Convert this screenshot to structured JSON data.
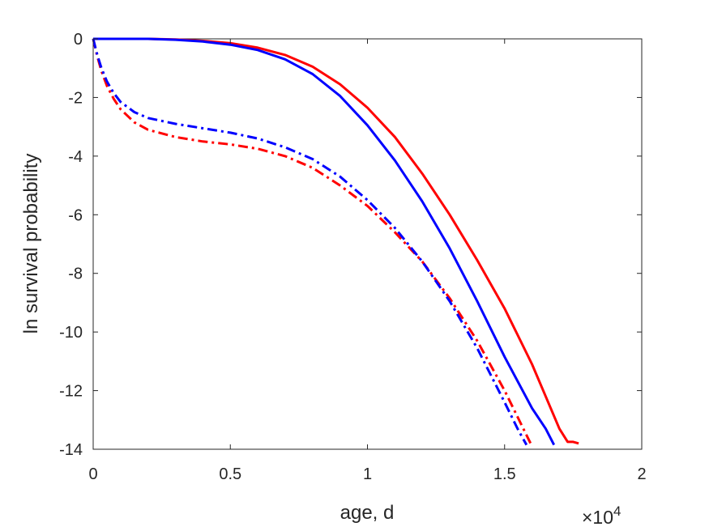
{
  "chart_data": {
    "type": "line",
    "xlabel": "age, d",
    "ylabel": "ln survival probability",
    "x_exponent_label": {
      "base": "×10",
      "exponent": "4"
    },
    "xlim": [
      0,
      20000
    ],
    "ylim": [
      -14,
      0
    ],
    "x_ticks": [
      0,
      5000,
      10000,
      15000,
      20000
    ],
    "x_tick_labels": [
      "0",
      "0.5",
      "1",
      "1.5",
      "2"
    ],
    "y_ticks": [
      0,
      -2,
      -4,
      -6,
      -8,
      -10,
      -12,
      -14
    ],
    "y_tick_labels": [
      "0",
      "-2",
      "-4",
      "-6",
      "-8",
      "-10",
      "-12",
      "-14"
    ],
    "grid": false,
    "series": [
      {
        "color": "#ff0000",
        "style": "solid",
        "x": [
          0,
          1000,
          2000,
          3000,
          4000,
          5000,
          6000,
          7000,
          8000,
          9000,
          10000,
          11000,
          12000,
          13000,
          14000,
          15000,
          16000,
          16500,
          17000,
          17300,
          17500,
          17700
        ],
        "y": [
          0,
          0,
          0,
          -0.02,
          -0.07,
          -0.15,
          -0.3,
          -0.55,
          -0.95,
          -1.55,
          -2.35,
          -3.35,
          -4.6,
          -6.0,
          -7.55,
          -9.2,
          -11.1,
          -12.2,
          -13.3,
          -13.75,
          -13.75,
          -13.8
        ]
      },
      {
        "color": "#0000ff",
        "style": "solid",
        "x": [
          0,
          1000,
          2000,
          3000,
          4000,
          5000,
          6000,
          7000,
          8000,
          9000,
          10000,
          11000,
          12000,
          13000,
          14000,
          15000,
          16000,
          16500,
          16800
        ],
        "y": [
          0,
          0,
          0,
          -0.03,
          -0.09,
          -0.2,
          -0.38,
          -0.7,
          -1.2,
          -1.95,
          -2.95,
          -4.15,
          -5.55,
          -7.15,
          -8.95,
          -10.85,
          -12.6,
          -13.3,
          -13.85
        ]
      },
      {
        "color": "#ff0000",
        "style": "dash-dot",
        "x": [
          0,
          150,
          300,
          500,
          750,
          1000,
          1500,
          2000,
          3000,
          4000,
          5000,
          6000,
          7000,
          8000,
          9000,
          10000,
          11000,
          12000,
          13000,
          14000,
          15000,
          15500,
          16000
        ],
        "y": [
          0,
          -0.6,
          -1.1,
          -1.6,
          -2.05,
          -2.4,
          -2.85,
          -3.1,
          -3.35,
          -3.5,
          -3.6,
          -3.75,
          -4.0,
          -4.4,
          -5.0,
          -5.7,
          -6.6,
          -7.6,
          -8.85,
          -10.3,
          -12.0,
          -12.95,
          -13.9
        ]
      },
      {
        "color": "#0000ff",
        "style": "dash-dot",
        "x": [
          0,
          150,
          300,
          500,
          750,
          1000,
          1500,
          2000,
          3000,
          4000,
          5000,
          6000,
          7000,
          8000,
          9000,
          10000,
          11000,
          12000,
          13000,
          14000,
          15000,
          15500,
          15800
        ],
        "y": [
          0,
          -0.55,
          -1.0,
          -1.45,
          -1.85,
          -2.15,
          -2.5,
          -2.7,
          -2.9,
          -3.05,
          -3.2,
          -3.4,
          -3.7,
          -4.1,
          -4.7,
          -5.5,
          -6.45,
          -7.6,
          -8.95,
          -10.55,
          -12.4,
          -13.35,
          -13.85
        ]
      }
    ]
  }
}
